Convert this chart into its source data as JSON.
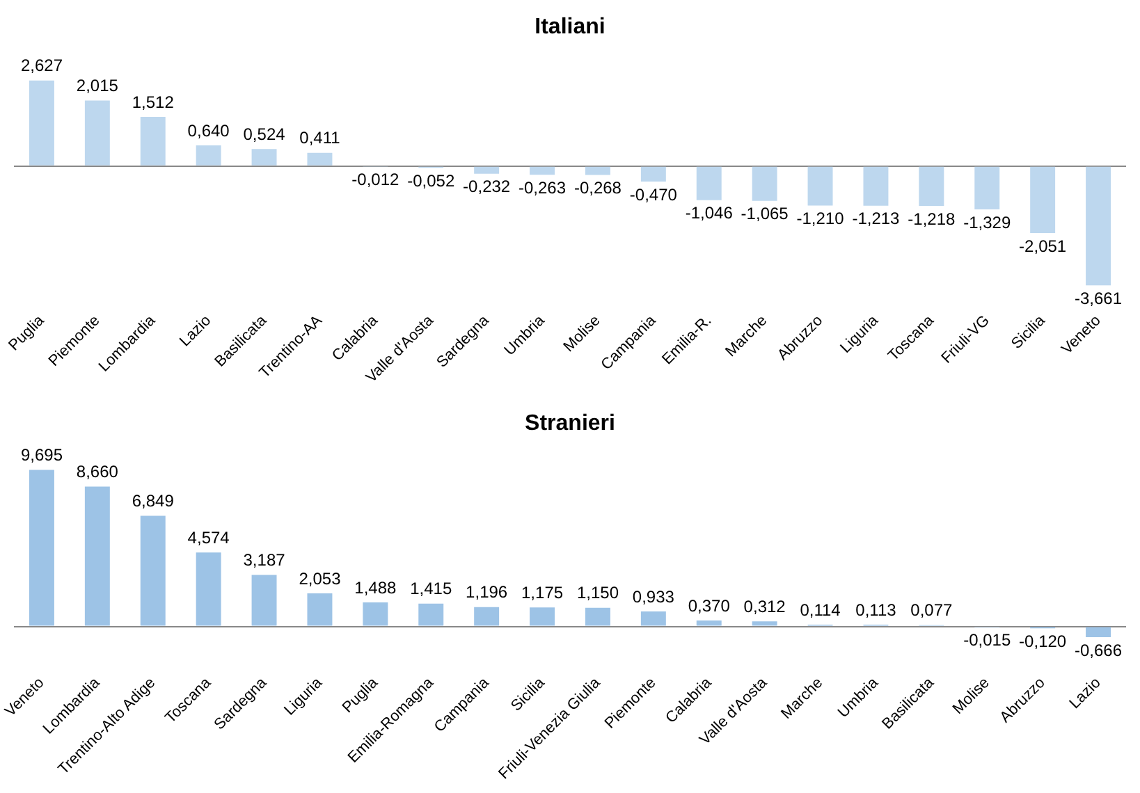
{
  "chart_data": [
    {
      "type": "bar",
      "title": "Italiani",
      "categories": [
        "Puglia",
        "Piemonte",
        "Lombardia",
        "Lazio",
        "Basilicata",
        "Trentino-AA",
        "Calabria",
        "Valle d'Aosta",
        "Sardegna",
        "Umbria",
        "Molise",
        "Campania",
        "Emilia-R.",
        "Marche",
        "Abruzzo",
        "Liguria",
        "Toscana",
        "Friuli-VG",
        "Sicilia",
        "Veneto"
      ],
      "values": [
        2.627,
        2.015,
        1.512,
        0.64,
        0.524,
        0.411,
        -0.012,
        -0.052,
        -0.232,
        -0.263,
        -0.268,
        -0.47,
        -1.046,
        -1.065,
        -1.21,
        -1.213,
        -1.218,
        -1.329,
        -2.051,
        -3.661
      ],
      "value_labels": [
        "2,627",
        "2,015",
        "1,512",
        "0,640",
        "0,524",
        "0,411",
        "-0,012",
        "-0,052",
        "-0,232",
        "-0,263",
        "-0,268",
        "-0,470",
        "-1,046",
        "-1,065",
        "-1,210",
        "-1,213",
        "-1,218",
        "-1,329",
        "-2,051",
        "-3,661"
      ],
      "color": "#bdd7ee"
    },
    {
      "type": "bar",
      "title": "Stranieri",
      "categories": [
        "Veneto",
        "Lombardia",
        "Trentino-Alto Adige",
        "Toscana",
        "Sardegna",
        "Liguria",
        "Puglia",
        "Emilia-Romagna",
        "Campania",
        "Sicilia",
        "Friuli-Venezia Giulia",
        "Piemonte",
        "Calabria",
        "Valle d'Aosta",
        "Marche",
        "Umbria",
        "Basilicata",
        "Molise",
        "Abruzzo",
        "Lazio"
      ],
      "values": [
        9.695,
        8.66,
        6.849,
        4.574,
        3.187,
        2.053,
        1.488,
        1.415,
        1.196,
        1.175,
        1.15,
        0.933,
        0.37,
        0.312,
        0.114,
        0.113,
        0.077,
        -0.015,
        -0.12,
        -0.666
      ],
      "value_labels": [
        "9,695",
        "8,660",
        "6,849",
        "4,574",
        "3,187",
        "2,053",
        "1,488",
        "1,415",
        "1,196",
        "1,175",
        "1,150",
        "0,933",
        "0,370",
        "0,312",
        "0,114",
        "0,113",
        "0,077",
        "-0,015",
        "-0,120",
        "-0,666"
      ],
      "color": "#9dc3e6"
    }
  ]
}
